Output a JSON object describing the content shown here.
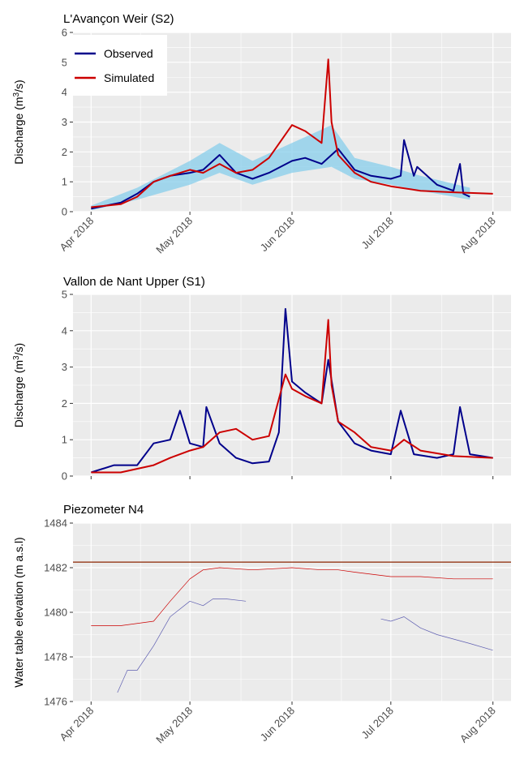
{
  "colors": {
    "observed": "#00008b",
    "simulated": "#cc0000",
    "band": "#87ceeb",
    "threshold": "#8b2500",
    "panel_bg": "#ebebeb",
    "grid": "#ffffff"
  },
  "x_ticks": [
    "Apr 2018",
    "May 2018",
    "Jun 2018",
    "Jul 2018",
    "Aug 2018"
  ],
  "chart_data": [
    {
      "type": "line",
      "title": "L'Avançon Weir (S2)",
      "ylabel": "Discharge (m³/s)",
      "ylabel_parts": {
        "pre": "Discharge (m",
        "sup": "3",
        "post": "/s)"
      },
      "ylim": [
        0,
        6
      ],
      "yticks": [
        0,
        1,
        2,
        3,
        4,
        5,
        6
      ],
      "xlim": [
        "2018-04-01",
        "2018-08-01"
      ],
      "legend": {
        "placement": "top-left",
        "entries": [
          "Observed",
          "Simulated"
        ]
      },
      "series": [
        {
          "name": "Observed",
          "x": [
            "2018-04-01",
            "2018-04-10",
            "2018-04-15",
            "2018-04-20",
            "2018-04-25",
            "2018-05-01",
            "2018-05-05",
            "2018-05-10",
            "2018-05-15",
            "2018-05-20",
            "2018-05-25",
            "2018-06-01",
            "2018-06-05",
            "2018-06-10",
            "2018-06-15",
            "2018-06-20",
            "2018-06-25",
            "2018-07-01",
            "2018-07-04",
            "2018-07-05",
            "2018-07-08",
            "2018-07-09",
            "2018-07-15",
            "2018-07-20",
            "2018-07-22",
            "2018-07-23",
            "2018-07-25"
          ],
          "values": [
            0.1,
            0.3,
            0.6,
            1.0,
            1.2,
            1.3,
            1.4,
            1.9,
            1.3,
            1.1,
            1.3,
            1.7,
            1.8,
            1.6,
            2.1,
            1.4,
            1.2,
            1.1,
            1.2,
            2.4,
            1.2,
            1.5,
            0.9,
            0.7,
            1.6,
            0.6,
            0.5
          ]
        },
        {
          "name": "Simulated",
          "x": [
            "2018-04-01",
            "2018-04-10",
            "2018-04-15",
            "2018-04-20",
            "2018-04-25",
            "2018-05-01",
            "2018-05-05",
            "2018-05-10",
            "2018-05-15",
            "2018-05-20",
            "2018-05-25",
            "2018-06-01",
            "2018-06-05",
            "2018-06-10",
            "2018-06-12",
            "2018-06-13",
            "2018-06-15",
            "2018-06-20",
            "2018-06-25",
            "2018-07-01",
            "2018-07-10",
            "2018-07-20",
            "2018-08-01"
          ],
          "values": [
            0.15,
            0.25,
            0.5,
            1.0,
            1.2,
            1.4,
            1.3,
            1.6,
            1.3,
            1.4,
            1.8,
            2.9,
            2.7,
            2.3,
            5.1,
            3.0,
            1.9,
            1.3,
            1.0,
            0.85,
            0.7,
            0.65,
            0.6
          ]
        }
      ],
      "band": {
        "name": "Observed uncertainty",
        "x": [
          "2018-04-01",
          "2018-04-15",
          "2018-05-01",
          "2018-05-10",
          "2018-05-20",
          "2018-06-01",
          "2018-06-13",
          "2018-06-20",
          "2018-07-01",
          "2018-07-10",
          "2018-07-25"
        ],
        "lower": [
          0.05,
          0.4,
          0.9,
          1.3,
          0.9,
          1.3,
          1.5,
          1.1,
          0.9,
          0.7,
          0.4
        ],
        "upper": [
          0.2,
          0.8,
          1.7,
          2.3,
          1.7,
          2.3,
          2.9,
          1.8,
          1.5,
          1.2,
          0.8
        ]
      }
    },
    {
      "type": "line",
      "title": "Vallon de Nant Upper (S1)",
      "ylabel": "Discharge (m³/s)",
      "ylabel_parts": {
        "pre": "Discharge (m",
        "sup": "3",
        "post": "/s)"
      },
      "ylim": [
        0,
        5
      ],
      "yticks": [
        0,
        1,
        2,
        3,
        4,
        5
      ],
      "xlim": [
        "2018-04-01",
        "2018-08-01"
      ],
      "series": [
        {
          "name": "Observed",
          "x": [
            "2018-04-01",
            "2018-04-08",
            "2018-04-15",
            "2018-04-20",
            "2018-04-25",
            "2018-04-28",
            "2018-05-01",
            "2018-05-05",
            "2018-05-06",
            "2018-05-10",
            "2018-05-15",
            "2018-05-20",
            "2018-05-25",
            "2018-05-28",
            "2018-05-30",
            "2018-06-01",
            "2018-06-05",
            "2018-06-10",
            "2018-06-12",
            "2018-06-15",
            "2018-06-20",
            "2018-06-25",
            "2018-07-01",
            "2018-07-04",
            "2018-07-08",
            "2018-07-15",
            "2018-07-20",
            "2018-07-22",
            "2018-07-25",
            "2018-08-01"
          ],
          "values": [
            0.1,
            0.3,
            0.3,
            0.9,
            1.0,
            1.8,
            0.9,
            0.8,
            1.9,
            0.9,
            0.5,
            0.35,
            0.4,
            1.2,
            4.6,
            2.6,
            2.3,
            2.0,
            3.2,
            1.5,
            0.9,
            0.7,
            0.6,
            1.8,
            0.6,
            0.5,
            0.6,
            1.9,
            0.6,
            0.5
          ]
        },
        {
          "name": "Simulated",
          "x": [
            "2018-04-01",
            "2018-04-10",
            "2018-04-20",
            "2018-04-25",
            "2018-05-01",
            "2018-05-05",
            "2018-05-10",
            "2018-05-15",
            "2018-05-20",
            "2018-05-25",
            "2018-05-30",
            "2018-06-01",
            "2018-06-05",
            "2018-06-10",
            "2018-06-12",
            "2018-06-13",
            "2018-06-15",
            "2018-06-20",
            "2018-06-25",
            "2018-07-01",
            "2018-07-05",
            "2018-07-10",
            "2018-07-20",
            "2018-08-01"
          ],
          "values": [
            0.1,
            0.1,
            0.3,
            0.5,
            0.7,
            0.8,
            1.2,
            1.3,
            1.0,
            1.1,
            2.8,
            2.4,
            2.2,
            2.0,
            4.3,
            2.5,
            1.5,
            1.2,
            0.8,
            0.7,
            1.0,
            0.7,
            0.55,
            0.5
          ]
        }
      ]
    },
    {
      "type": "line",
      "title": "Piezometer N4",
      "ylabel": "Water table elevation (m a.s.l)",
      "ylim": [
        1476,
        1484
      ],
      "yticks": [
        1476,
        1478,
        1480,
        1482,
        1484
      ],
      "xlim": [
        "2018-04-01",
        "2018-08-01"
      ],
      "hline": 1482.25,
      "series": [
        {
          "name": "Observed",
          "x": [
            "2018-04-09",
            "2018-04-12",
            "2018-04-15",
            "2018-04-20",
            "2018-04-25",
            "2018-05-01",
            "2018-05-05",
            "2018-05-08",
            "2018-05-12",
            "2018-05-18"
          ],
          "values": [
            1476.4,
            1477.4,
            1477.4,
            1478.5,
            1479.8,
            1480.5,
            1480.3,
            1480.6,
            1480.6,
            1480.5
          ]
        },
        {
          "name": "Observed",
          "x": [
            "2018-06-28",
            "2018-07-01",
            "2018-07-05",
            "2018-07-10",
            "2018-07-15",
            "2018-07-20",
            "2018-07-25",
            "2018-08-01"
          ],
          "values": [
            1479.7,
            1479.6,
            1479.8,
            1479.3,
            1479.0,
            1478.8,
            1478.6,
            1478.3
          ]
        },
        {
          "name": "Simulated",
          "x": [
            "2018-04-01",
            "2018-04-10",
            "2018-04-20",
            "2018-04-25",
            "2018-05-01",
            "2018-05-05",
            "2018-05-10",
            "2018-05-20",
            "2018-06-01",
            "2018-06-10",
            "2018-06-15",
            "2018-06-20",
            "2018-07-01",
            "2018-07-10",
            "2018-07-20",
            "2018-08-01"
          ],
          "values": [
            1479.4,
            1479.4,
            1479.6,
            1480.5,
            1481.5,
            1481.9,
            1482.0,
            1481.9,
            1482.0,
            1481.9,
            1481.9,
            1481.8,
            1481.6,
            1481.6,
            1481.5,
            1481.5
          ]
        }
      ]
    }
  ]
}
